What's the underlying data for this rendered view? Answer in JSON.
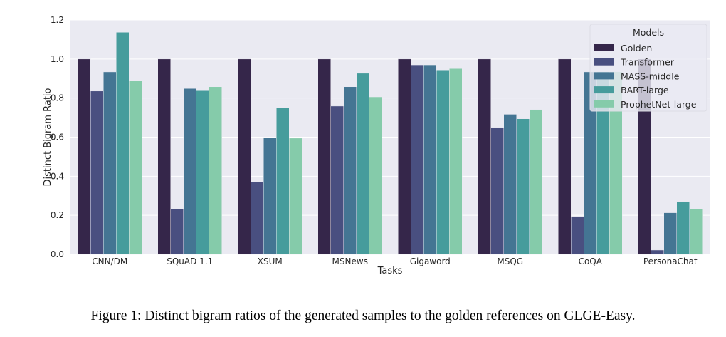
{
  "chart_data": {
    "type": "bar",
    "xlabel": "Tasks",
    "ylabel": "Distinct Bigram Ratio",
    "ylim": [
      0,
      1.2
    ],
    "yticks": [
      "0.0",
      "0.2",
      "0.4",
      "0.6",
      "0.8",
      "1.0",
      "1.2"
    ],
    "grid": true,
    "legend": {
      "title": "Models",
      "placement": "top-right"
    },
    "categories": [
      "CNN/DM",
      "SQuAD 1.1",
      "XSUM",
      "MSNews",
      "Gigaword",
      "MSQG",
      "CoQA",
      "PersonaChat"
    ],
    "series": [
      {
        "name": "Golden",
        "color": "#35264a",
        "values": [
          1.0,
          1.0,
          1.0,
          1.0,
          1.0,
          1.0,
          1.0,
          1.0
        ]
      },
      {
        "name": "Transformer",
        "color": "#494f80",
        "values": [
          0.836,
          0.231,
          0.371,
          0.759,
          0.97,
          0.65,
          0.194,
          0.022
        ]
      },
      {
        "name": "MASS-middle",
        "color": "#447593",
        "values": [
          0.934,
          0.849,
          0.598,
          0.858,
          0.97,
          0.717,
          0.934,
          0.213
        ]
      },
      {
        "name": "BART-large",
        "color": "#469c9c",
        "values": [
          1.137,
          0.838,
          0.751,
          0.927,
          0.944,
          0.694,
          0.935,
          0.27
        ]
      },
      {
        "name": "ProphetNet-large",
        "color": "#85cbaa",
        "values": [
          0.889,
          0.858,
          0.595,
          0.806,
          0.951,
          0.741,
          0.935,
          0.231
        ]
      }
    ]
  },
  "caption": "Figure 1: Distinct bigram ratios of the generated samples to the golden references on GLGE-Easy."
}
